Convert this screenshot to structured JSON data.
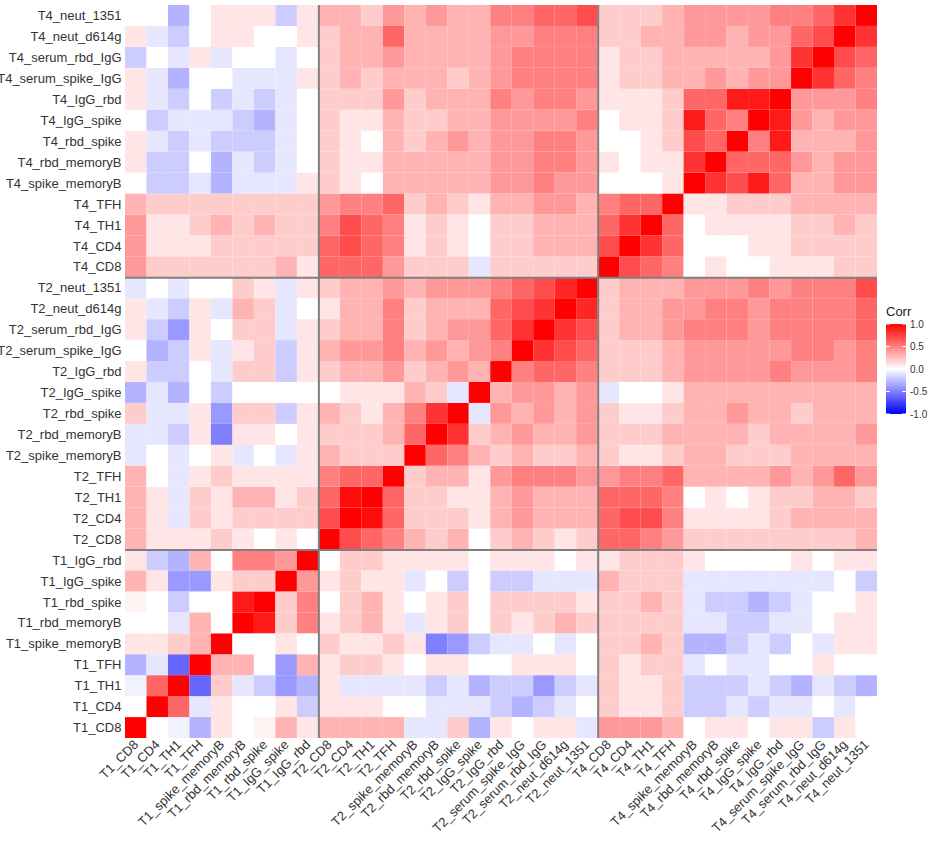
{
  "chart_data": {
    "type": "heatmap",
    "categories": [
      "T1_CD8",
      "T1_CD4",
      "T1_TH1",
      "T1_TFH",
      "T1_spike_memoryB",
      "T1_rbd_memoryB",
      "T1_rbd_spike",
      "T1_IgG_spike",
      "T1_IgG_rbd",
      "T2_CD8",
      "T2_CD4",
      "T2_TH1",
      "T2_TFH",
      "T2_spike_memoryB",
      "T2_rbd_memoryB",
      "T2_rbd_spike",
      "T2_IgG_spike",
      "T2_IgG_rbd",
      "T2_serum_spike_IgG",
      "T2_serum_rbd_IgG",
      "T2_neut_d614g",
      "T2_neut_1351",
      "T4_CD8",
      "T4_CD4",
      "T4_TH1",
      "T4_TFH",
      "T4_spike_memoryB",
      "T4_rbd_memoryB",
      "T4_rbd_spike",
      "T4_IgG_spike",
      "T4_IgG_rbd",
      "T4_serum_spike_IgG",
      "T4_serum_rbd_IgG",
      "T4_neut_d614g",
      "T4_neut_1351"
    ],
    "values": [
      [
        1,
        0,
        -0.05,
        -0.3,
        0.1,
        0,
        0.05,
        0.3,
        0.1,
        0.3,
        0.3,
        0.3,
        0.3,
        -0.1,
        -0.1,
        0.2,
        -0.3,
        0.1,
        0,
        0.1,
        0.1,
        -0.1,
        0.4,
        0.4,
        0.4,
        0.3,
        0,
        0.1,
        0.1,
        0,
        0.1,
        0.1,
        -0.2,
        0.1,
        0
      ],
      [
        0,
        1,
        0.6,
        -0.1,
        0.1,
        0,
        0,
        0.1,
        -0.2,
        0.1,
        0.1,
        0.1,
        0,
        0,
        -0.1,
        -0.1,
        -0.1,
        -0.2,
        -0.3,
        -0.2,
        -0.1,
        0,
        0.2,
        0.1,
        0.1,
        0.2,
        -0.2,
        -0.2,
        -0.1,
        -0.2,
        -0.1,
        -0.1,
        0,
        -0.1,
        0
      ],
      [
        -0.05,
        0.6,
        1,
        -0.6,
        0.2,
        -0.1,
        -0.2,
        -0.4,
        -0.3,
        0.1,
        -0.1,
        -0.1,
        -0.1,
        -0.1,
        -0.2,
        -0.1,
        -0.3,
        -0.2,
        -0.2,
        -0.4,
        -0.2,
        -0.1,
        0.2,
        0.1,
        0.1,
        0.2,
        -0.2,
        -0.2,
        -0.2,
        -0.1,
        -0.2,
        -0.3,
        -0.1,
        -0.2,
        -0.3
      ],
      [
        -0.3,
        -0.1,
        -0.6,
        1,
        0.3,
        0.3,
        0,
        -0.4,
        0.3,
        0.1,
        0.2,
        0.2,
        0.1,
        0,
        0.1,
        0.1,
        0,
        0,
        0.1,
        0.1,
        0.1,
        0,
        0.2,
        0.1,
        0.2,
        0.2,
        -0.1,
        0,
        -0.1,
        -0.1,
        0,
        0,
        0.1,
        0,
        0
      ],
      [
        0.1,
        0.1,
        0.2,
        0.3,
        1,
        0,
        0,
        0.1,
        0,
        0.2,
        0.1,
        0.1,
        0.2,
        0.1,
        -0.5,
        -0.4,
        -0.2,
        -0.1,
        -0.1,
        0,
        -0.1,
        0,
        0.2,
        0.2,
        0.3,
        0.2,
        -0.3,
        -0.3,
        -0.2,
        -0.1,
        -0.2,
        0,
        -0.1,
        0.1,
        0.1
      ],
      [
        0,
        0,
        -0.1,
        0.3,
        0,
        1,
        0.9,
        0.2,
        0.5,
        0.1,
        0.2,
        0.3,
        0.1,
        -0.1,
        0.1,
        0.2,
        0,
        0.2,
        0.1,
        0.2,
        0.3,
        0.2,
        0.2,
        0.2,
        0.2,
        0.2,
        -0.1,
        -0.1,
        -0.2,
        -0.2,
        -0.1,
        -0.1,
        0,
        0.1,
        0.1
      ],
      [
        0.05,
        0,
        -0.2,
        0,
        0,
        0.9,
        1,
        0.2,
        0.5,
        0,
        0.2,
        0.3,
        0.1,
        0,
        0.1,
        0.2,
        0,
        0.2,
        0.2,
        0.2,
        0.2,
        0.1,
        0.2,
        0.2,
        0.3,
        0.2,
        -0.1,
        -0.2,
        -0.2,
        -0.3,
        -0.2,
        -0.1,
        0,
        0,
        0.1
      ],
      [
        0.3,
        0.1,
        -0.4,
        -0.4,
        0.1,
        0.2,
        0.2,
        1,
        0.4,
        0.1,
        0.2,
        0.1,
        0.1,
        -0.1,
        0,
        -0.2,
        0,
        -0.2,
        -0.2,
        -0.1,
        -0.1,
        -0.1,
        0.3,
        0.2,
        0.2,
        0.2,
        -0.1,
        -0.1,
        -0.1,
        -0.1,
        -0.1,
        -0.1,
        -0.1,
        0,
        -0.2
      ],
      [
        0.1,
        -0.2,
        -0.3,
        0.3,
        0,
        0.5,
        0.5,
        0.4,
        1,
        0,
        0.2,
        0.2,
        0.1,
        0.1,
        0.1,
        0.1,
        0,
        0.1,
        0.1,
        0.1,
        0,
        0.1,
        0.1,
        0.2,
        0.2,
        0.2,
        0.1,
        0,
        0,
        0,
        0,
        0.1,
        0,
        0.1,
        0.1
      ],
      [
        0.3,
        0.1,
        0.1,
        0.1,
        0.2,
        0.1,
        0,
        0.1,
        0,
        1,
        0.7,
        0.6,
        0.5,
        0.3,
        0.2,
        0.3,
        0,
        0.2,
        0.3,
        0.2,
        0.1,
        0.2,
        0.6,
        0.6,
        0.5,
        0.4,
        0.2,
        0.2,
        0.2,
        0.2,
        0.2,
        0.2,
        0.2,
        0.2,
        0.3
      ],
      [
        0.3,
        0.1,
        -0.1,
        0.2,
        0.1,
        0.2,
        0.2,
        0.2,
        0.2,
        0.7,
        1,
        0.95,
        0.6,
        0.2,
        0.2,
        0.2,
        0.1,
        0.3,
        0.4,
        0.3,
        0.3,
        0.3,
        0.6,
        0.7,
        0.7,
        0.5,
        0.1,
        0.1,
        0.1,
        0.1,
        0.2,
        0.3,
        0.3,
        0.3,
        0.3
      ],
      [
        0.3,
        0.1,
        -0.1,
        0.2,
        0.1,
        0.3,
        0.3,
        0.1,
        0.2,
        0.6,
        0.95,
        1,
        0.6,
        0.2,
        0.2,
        0.1,
        0.1,
        0.3,
        0.4,
        0.3,
        0.3,
        0.3,
        0.6,
        0.6,
        0.6,
        0.5,
        0,
        0.1,
        0,
        0.1,
        0.2,
        0.2,
        0.3,
        0.3,
        0.2
      ],
      [
        0.3,
        0,
        -0.1,
        0.1,
        0.2,
        0.1,
        0.1,
        0.1,
        0.1,
        0.5,
        0.6,
        0.6,
        1,
        0.2,
        0.3,
        0.3,
        0.1,
        0.4,
        0.5,
        0.5,
        0.5,
        0.4,
        0.4,
        0.5,
        0.5,
        0.6,
        0.3,
        0.3,
        0.3,
        0.3,
        0.4,
        0.3,
        0.4,
        0.6,
        0.4
      ],
      [
        -0.1,
        0,
        -0.1,
        0,
        0.1,
        -0.1,
        0,
        -0.1,
        0.1,
        0.3,
        0.2,
        0.2,
        0.2,
        1,
        0.6,
        0.5,
        0.3,
        0.2,
        0.3,
        0.2,
        0.2,
        0.3,
        0.2,
        0.1,
        0.1,
        0.2,
        0.3,
        0.3,
        0.2,
        0.2,
        0.2,
        0.3,
        0.3,
        0.3,
        0.3
      ],
      [
        -0.1,
        -0.1,
        -0.2,
        0.1,
        -0.5,
        0.1,
        0.1,
        0,
        0.1,
        0.2,
        0.2,
        0.2,
        0.3,
        0.6,
        1,
        0.8,
        0.2,
        0.3,
        0.4,
        0.3,
        0.3,
        0.4,
        0.2,
        0.2,
        0.2,
        0.3,
        0.3,
        0.3,
        0.3,
        0.2,
        0.3,
        0.3,
        0.3,
        0.3,
        0.4
      ],
      [
        0.2,
        -0.1,
        -0.1,
        0.1,
        -0.4,
        0.2,
        0.2,
        -0.2,
        0.1,
        0.3,
        0.2,
        0.1,
        0.3,
        0.5,
        0.8,
        1,
        -0.1,
        0.4,
        0.3,
        0.4,
        0.3,
        0.4,
        0.2,
        0.1,
        0.1,
        0.2,
        0.3,
        0.3,
        0.4,
        0.3,
        0.3,
        0.2,
        0.3,
        0.3,
        0.3
      ],
      [
        -0.3,
        -0.1,
        -0.3,
        0,
        -0.2,
        0,
        0,
        0,
        0,
        0,
        0.1,
        0.1,
        0.1,
        0.3,
        0.2,
        -0.1,
        1,
        0.3,
        0.4,
        0.4,
        0.3,
        0.4,
        -0.1,
        0,
        0,
        0.1,
        0.3,
        0.3,
        0.3,
        0.3,
        0.3,
        0.3,
        0.3,
        0.3,
        0.3
      ],
      [
        0.1,
        -0.2,
        -0.2,
        0,
        -0.1,
        0.2,
        0.2,
        -0.2,
        0.1,
        0.2,
        0.3,
        0.3,
        0.4,
        0.2,
        0.3,
        0.4,
        0.3,
        1,
        0.5,
        0.6,
        0.6,
        0.5,
        0.2,
        0.2,
        0.2,
        0.3,
        0.4,
        0.4,
        0.4,
        0.4,
        0.5,
        0.4,
        0.4,
        0.4,
        0.5
      ],
      [
        0,
        -0.3,
        -0.2,
        0.1,
        -0.1,
        0.1,
        0.2,
        -0.2,
        0.1,
        0.3,
        0.4,
        0.4,
        0.5,
        0.3,
        0.4,
        0.3,
        0.4,
        0.5,
        1,
        0.8,
        0.7,
        0.6,
        0.2,
        0.2,
        0.2,
        0.3,
        0.4,
        0.4,
        0.4,
        0.4,
        0.4,
        0.5,
        0.5,
        0.4,
        0.5
      ],
      [
        0.1,
        -0.2,
        -0.4,
        0.1,
        0,
        0.2,
        0.2,
        -0.1,
        0.1,
        0.2,
        0.3,
        0.3,
        0.5,
        0.2,
        0.3,
        0.4,
        0.4,
        0.6,
        0.8,
        1,
        0.8,
        0.7,
        0.2,
        0.3,
        0.3,
        0.4,
        0.5,
        0.5,
        0.5,
        0.4,
        0.5,
        0.5,
        0.5,
        0.5,
        0.6
      ],
      [
        0.1,
        -0.1,
        -0.2,
        0.1,
        -0.1,
        0.3,
        0.2,
        -0.1,
        0,
        0.1,
        0.3,
        0.3,
        0.5,
        0.2,
        0.3,
        0.3,
        0.3,
        0.6,
        0.7,
        0.8,
        1,
        0.85,
        0.2,
        0.3,
        0.3,
        0.4,
        0.4,
        0.5,
        0.5,
        0.4,
        0.5,
        0.5,
        0.5,
        0.5,
        0.6
      ],
      [
        -0.1,
        0,
        -0.1,
        0,
        0,
        0.2,
        0.1,
        -0.1,
        0.1,
        0.2,
        0.3,
        0.3,
        0.4,
        0.3,
        0.4,
        0.4,
        0.4,
        0.5,
        0.6,
        0.7,
        0.85,
        1,
        0.2,
        0.3,
        0.3,
        0.3,
        0.4,
        0.4,
        0.4,
        0.5,
        0.4,
        0.5,
        0.5,
        0.5,
        0.7
      ],
      [
        0.4,
        0.2,
        0.2,
        0.2,
        0.2,
        0.2,
        0.2,
        0.3,
        0.1,
        0.6,
        0.6,
        0.6,
        0.4,
        0.2,
        0.2,
        0.2,
        -0.1,
        0.2,
        0.2,
        0.2,
        0.2,
        0.2,
        1,
        0.7,
        0.6,
        0.5,
        0,
        0.1,
        0,
        0,
        0.1,
        0.1,
        0.1,
        0.2,
        0.2
      ],
      [
        0.4,
        0.1,
        0.1,
        0.1,
        0.2,
        0.2,
        0.2,
        0.2,
        0.2,
        0.6,
        0.7,
        0.6,
        0.5,
        0.1,
        0.2,
        0.1,
        0,
        0.2,
        0.2,
        0.3,
        0.3,
        0.3,
        0.7,
        1,
        0.8,
        0.6,
        0,
        0,
        0,
        0.1,
        0.1,
        0.2,
        0.2,
        0.2,
        0.2
      ],
      [
        0.4,
        0.1,
        0.1,
        0.2,
        0.3,
        0.2,
        0.3,
        0.2,
        0.2,
        0.5,
        0.7,
        0.6,
        0.5,
        0.1,
        0.2,
        0.1,
        0,
        0.2,
        0.2,
        0.3,
        0.3,
        0.3,
        0.6,
        0.8,
        1,
        0.6,
        0,
        0.1,
        0.1,
        0.1,
        0.1,
        0.2,
        0.2,
        0.3,
        0.2
      ],
      [
        0.3,
        0.2,
        0.2,
        0.2,
        0.2,
        0.2,
        0.2,
        0.2,
        0.2,
        0.4,
        0.5,
        0.5,
        0.6,
        0.2,
        0.3,
        0.2,
        0.1,
        0.3,
        0.3,
        0.4,
        0.4,
        0.3,
        0.5,
        0.6,
        0.6,
        1,
        0.1,
        0.1,
        0.2,
        0.2,
        0.2,
        0.3,
        0.3,
        0.3,
        0.3
      ],
      [
        0,
        -0.2,
        -0.2,
        -0.1,
        -0.3,
        -0.1,
        -0.1,
        -0.1,
        0.1,
        0.2,
        0.1,
        0,
        0.3,
        0.3,
        0.3,
        0.3,
        0.3,
        0.4,
        0.4,
        0.5,
        0.4,
        0.4,
        0,
        0,
        0,
        0.1,
        1,
        0.8,
        0.7,
        0.9,
        0.6,
        0.3,
        0.3,
        0.4,
        0.4
      ],
      [
        0.1,
        -0.2,
        -0.2,
        0,
        -0.3,
        -0.1,
        -0.2,
        -0.1,
        0,
        0.2,
        0.1,
        0.1,
        0.3,
        0.3,
        0.3,
        0.3,
        0.3,
        0.4,
        0.4,
        0.5,
        0.5,
        0.4,
        0.1,
        0,
        0.1,
        0.1,
        0.8,
        1,
        0.6,
        0.6,
        0.6,
        0.4,
        0.3,
        0.4,
        0.4
      ],
      [
        0.1,
        -0.1,
        -0.2,
        -0.1,
        -0.2,
        -0.2,
        -0.2,
        -0.1,
        0,
        0.2,
        0.1,
        0,
        0.3,
        0.2,
        0.3,
        0.4,
        0.3,
        0.4,
        0.4,
        0.5,
        0.5,
        0.4,
        0,
        0,
        0.1,
        0.2,
        0.7,
        0.6,
        1,
        0.5,
        0.9,
        0.3,
        0.3,
        0.3,
        0.4
      ],
      [
        0,
        -0.2,
        -0.1,
        -0.1,
        -0.1,
        -0.2,
        -0.3,
        -0.1,
        0,
        0.2,
        0.1,
        0.1,
        0.3,
        0.2,
        0.2,
        0.3,
        0.3,
        0.4,
        0.4,
        0.4,
        0.4,
        0.5,
        0,
        0.1,
        0.1,
        0.2,
        0.9,
        0.6,
        0.5,
        1,
        0.9,
        0.4,
        0.3,
        0.4,
        0.4
      ],
      [
        0.1,
        -0.1,
        -0.2,
        0,
        -0.2,
        -0.1,
        -0.2,
        -0.1,
        0,
        0.2,
        0.2,
        0.2,
        0.4,
        0.2,
        0.3,
        0.3,
        0.3,
        0.5,
        0.4,
        0.5,
        0.5,
        0.4,
        0.1,
        0.1,
        0.1,
        0.2,
        0.6,
        0.6,
        0.9,
        0.9,
        1,
        0.4,
        0.4,
        0.4,
        0.5
      ],
      [
        0.1,
        -0.1,
        -0.3,
        0,
        0,
        -0.1,
        -0.1,
        -0.1,
        0.1,
        0.2,
        0.3,
        0.2,
        0.3,
        0.3,
        0.3,
        0.2,
        0.3,
        0.4,
        0.5,
        0.5,
        0.5,
        0.5,
        0.1,
        0.2,
        0.2,
        0.3,
        0.3,
        0.4,
        0.3,
        0.4,
        0.4,
        1,
        0.8,
        0.6,
        0.5
      ],
      [
        -0.2,
        0,
        -0.1,
        0.1,
        -0.1,
        0,
        0,
        -0.1,
        0,
        0.2,
        0.3,
        0.3,
        0.4,
        0.3,
        0.3,
        0.3,
        0.3,
        0.4,
        0.5,
        0.5,
        0.5,
        0.5,
        0.1,
        0.2,
        0.2,
        0.3,
        0.3,
        0.3,
        0.3,
        0.3,
        0.4,
        0.8,
        1,
        0.7,
        0.6
      ],
      [
        0.1,
        -0.1,
        -0.2,
        0,
        0.1,
        0.1,
        0,
        0,
        0.1,
        0.2,
        0.3,
        0.3,
        0.6,
        0.3,
        0.3,
        0.3,
        0.3,
        0.4,
        0.4,
        0.5,
        0.5,
        0.5,
        0.2,
        0.2,
        0.3,
        0.3,
        0.4,
        0.4,
        0.3,
        0.4,
        0.4,
        0.6,
        0.7,
        1,
        0.8
      ],
      [
        0,
        0,
        -0.3,
        0,
        0.1,
        0.1,
        0.1,
        -0.2,
        0.1,
        0.3,
        0.3,
        0.2,
        0.4,
        0.3,
        0.4,
        0.3,
        0.3,
        0.5,
        0.5,
        0.6,
        0.6,
        0.7,
        0.2,
        0.2,
        0.2,
        0.3,
        0.4,
        0.4,
        0.4,
        0.4,
        0.5,
        0.5,
        0.6,
        0.8,
        1
      ]
    ],
    "colorbar": {
      "title": "Corr",
      "range": [
        -1,
        1
      ],
      "ticks": [
        {
          "value": -1,
          "label": "-1.0"
        },
        {
          "value": -0.5,
          "label": "-0.5"
        },
        {
          "value": 0,
          "label": "0.0"
        },
        0.5,
        {
          "value": 1,
          "label": "1.0"
        }
      ]
    }
  }
}
